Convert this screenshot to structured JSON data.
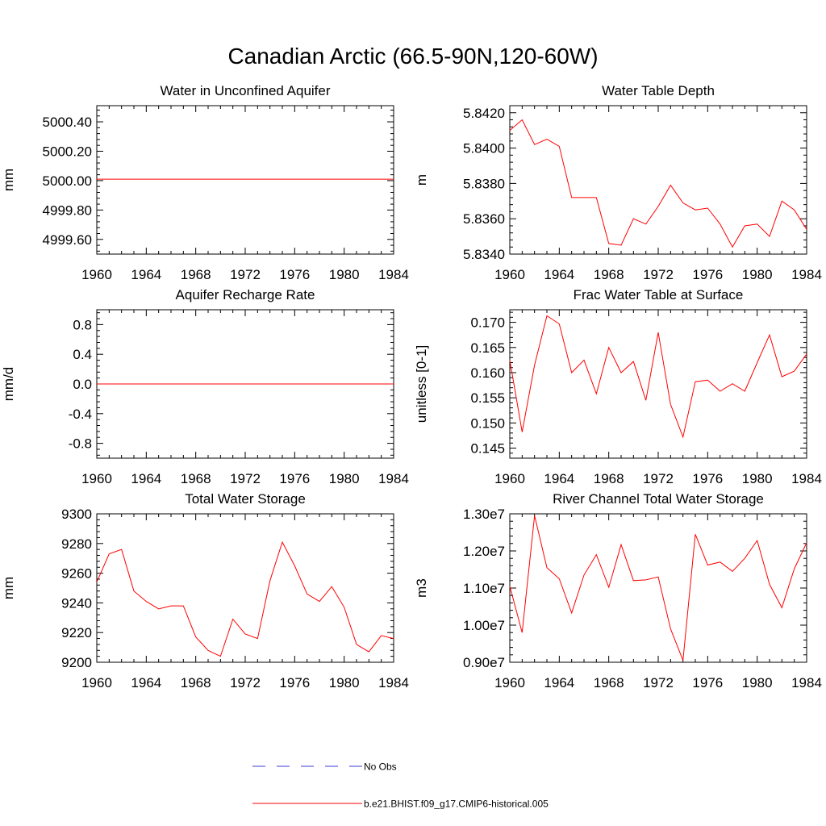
{
  "title": "Canadian Arctic (66.5-90N,120-60W)",
  "colors": {
    "model": "#ff0000",
    "obs": "#3a3ad0",
    "axis": "#000000"
  },
  "legend": [
    {
      "label": "No Obs",
      "style": "dashed",
      "color": "#3a3ad0"
    },
    {
      "label": "b.e21.BHIST.f09_g17.CMIP6-historical.005",
      "style": "solid",
      "color": "#ff0000"
    }
  ],
  "chart_data": [
    {
      "type": "line",
      "title": "Water in Unconfined Aquifer",
      "ylabel": "mm",
      "xlim": [
        1960,
        1984
      ],
      "xticks": [
        1960,
        1964,
        1968,
        1972,
        1976,
        1980,
        1984
      ],
      "ylim": [
        4999.5,
        5000.51
      ],
      "yticks": [
        4999.6,
        4999.8,
        5000.0,
        5000.2,
        5000.4
      ],
      "ytick_labels": [
        "4999.60",
        "4999.80",
        "5000.00",
        "5000.20",
        "5000.40"
      ],
      "series": [
        {
          "x": [
            1960,
            1961,
            1962,
            1963,
            1964,
            1965,
            1966,
            1967,
            1968,
            1969,
            1970,
            1971,
            1972,
            1973,
            1974,
            1975,
            1976,
            1977,
            1978,
            1979,
            1980,
            1981,
            1982,
            1983,
            1984
          ],
          "y": [
            5000.01,
            5000.01,
            5000.01,
            5000.01,
            5000.01,
            5000.01,
            5000.01,
            5000.01,
            5000.01,
            5000.01,
            5000.01,
            5000.01,
            5000.01,
            5000.01,
            5000.01,
            5000.01,
            5000.01,
            5000.01,
            5000.01,
            5000.01,
            5000.01,
            5000.01,
            5000.01,
            5000.01,
            5000.01
          ]
        }
      ]
    },
    {
      "type": "line",
      "title": "Water Table Depth",
      "ylabel": "m",
      "xlim": [
        1960,
        1984
      ],
      "xticks": [
        1960,
        1964,
        1968,
        1972,
        1976,
        1980,
        1984
      ],
      "ylim": [
        5.834,
        5.8424
      ],
      "yticks": [
        5.834,
        5.836,
        5.838,
        5.84,
        5.842
      ],
      "ytick_labels": [
        "5.8340",
        "5.8360",
        "5.8380",
        "5.8400",
        "5.8420"
      ],
      "series": [
        {
          "x": [
            1960,
            1961,
            1962,
            1963,
            1964,
            1965,
            1966,
            1967,
            1968,
            1969,
            1970,
            1971,
            1972,
            1973,
            1974,
            1975,
            1976,
            1977,
            1978,
            1979,
            1980,
            1981,
            1982,
            1983,
            1984
          ],
          "y": [
            5.841,
            5.8416,
            5.8402,
            5.8405,
            5.8401,
            5.8372,
            5.8372,
            5.8372,
            5.8346,
            5.8345,
            5.836,
            5.8357,
            5.8367,
            5.8379,
            5.8369,
            5.8365,
            5.8366,
            5.8357,
            5.8344,
            5.8356,
            5.8357,
            5.835,
            5.837,
            5.8365,
            5.8354
          ]
        }
      ]
    },
    {
      "type": "line",
      "title": "Aquifer Recharge Rate",
      "ylabel": "mm/d",
      "xlim": [
        1960,
        1984
      ],
      "xticks": [
        1960,
        1964,
        1968,
        1972,
        1976,
        1980,
        1984
      ],
      "ylim": [
        -1.0,
        1.0
      ],
      "yticks": [
        -0.8,
        -0.4,
        0.0,
        0.4,
        0.8
      ],
      "ytick_labels": [
        "-0.8",
        "-0.4",
        "0.0",
        "0.4",
        "0.8"
      ],
      "series": [
        {
          "x": [
            1960,
            1961,
            1962,
            1963,
            1964,
            1965,
            1966,
            1967,
            1968,
            1969,
            1970,
            1971,
            1972,
            1973,
            1974,
            1975,
            1976,
            1977,
            1978,
            1979,
            1980,
            1981,
            1982,
            1983,
            1984
          ],
          "y": [
            0,
            0,
            0,
            0,
            0,
            0,
            0,
            0,
            0,
            0,
            0,
            0,
            0,
            0,
            0,
            0,
            0,
            0,
            0,
            0,
            0,
            0,
            0,
            0,
            0
          ]
        }
      ]
    },
    {
      "type": "line",
      "title": "Frac Water Table at Surface",
      "ylabel": "unitless [0-1]",
      "xlim": [
        1960,
        1984
      ],
      "xticks": [
        1960,
        1964,
        1968,
        1972,
        1976,
        1980,
        1984
      ],
      "ylim": [
        0.143,
        0.1725
      ],
      "yticks": [
        0.145,
        0.15,
        0.155,
        0.16,
        0.165,
        0.17
      ],
      "ytick_labels": [
        "0.145",
        "0.150",
        "0.155",
        "0.160",
        "0.165",
        "0.170"
      ],
      "series": [
        {
          "x": [
            1960,
            1961,
            1962,
            1963,
            1964,
            1965,
            1966,
            1967,
            1968,
            1969,
            1970,
            1971,
            1972,
            1973,
            1974,
            1975,
            1976,
            1977,
            1978,
            1979,
            1980,
            1981,
            1982,
            1983,
            1984
          ],
          "y": [
            0.1625,
            0.1482,
            0.1615,
            0.1713,
            0.1697,
            0.16,
            0.1625,
            0.1558,
            0.165,
            0.16,
            0.1622,
            0.1545,
            0.168,
            0.1537,
            0.1472,
            0.1582,
            0.1585,
            0.1563,
            0.1578,
            0.1563,
            0.162,
            0.1675,
            0.1592,
            0.1603,
            0.1637
          ]
        }
      ]
    },
    {
      "type": "line",
      "title": "Total Water Storage",
      "ylabel": "mm",
      "xlim": [
        1960,
        1984
      ],
      "xticks": [
        1960,
        1964,
        1968,
        1972,
        1976,
        1980,
        1984
      ],
      "ylim": [
        9200,
        9300
      ],
      "yticks": [
        9200,
        9220,
        9240,
        9260,
        9280,
        9300
      ],
      "ytick_labels": [
        "9200",
        "9220",
        "9240",
        "9260",
        "9280",
        "9300"
      ],
      "series": [
        {
          "x": [
            1960,
            1961,
            1962,
            1963,
            1964,
            1965,
            1966,
            1967,
            1968,
            1969,
            1970,
            1971,
            1972,
            1973,
            1974,
            1975,
            1976,
            1977,
            1978,
            1979,
            1980,
            1981,
            1982,
            1983,
            1984
          ],
          "y": [
            9254,
            9273,
            9276,
            9248,
            9241,
            9236,
            9238,
            9238,
            9217,
            9208,
            9204,
            9229,
            9219,
            9216,
            9255,
            9281,
            9265,
            9246,
            9241,
            9251,
            9237,
            9212,
            9207,
            9218,
            9216
          ]
        }
      ]
    },
    {
      "type": "line",
      "title": "River Channel Total Water Storage",
      "ylabel": "m3",
      "xlim": [
        1960,
        1984
      ],
      "xticks": [
        1960,
        1964,
        1968,
        1972,
        1976,
        1980,
        1984
      ],
      "ylim": [
        9000000,
        13000000
      ],
      "yticks": [
        9000000,
        10000000,
        11000000,
        12000000,
        13000000
      ],
      "ytick_labels": [
        "0.90e7",
        "1.00e7",
        "1.10e7",
        "1.20e7",
        "1.30e7"
      ],
      "series": [
        {
          "x": [
            1960,
            1961,
            1962,
            1963,
            1964,
            1965,
            1966,
            1967,
            1968,
            1969,
            1970,
            1971,
            1972,
            1973,
            1974,
            1975,
            1976,
            1977,
            1978,
            1979,
            1980,
            1981,
            1982,
            1983,
            1984
          ],
          "y": [
            11050000,
            9800000,
            12950000,
            11550000,
            11250000,
            10330000,
            11350000,
            11900000,
            11020000,
            12170000,
            11200000,
            11220000,
            11300000,
            9900000,
            9050000,
            12450000,
            11620000,
            11700000,
            11450000,
            11800000,
            12280000,
            11100000,
            10470000,
            11520000,
            12220000
          ]
        }
      ]
    }
  ]
}
